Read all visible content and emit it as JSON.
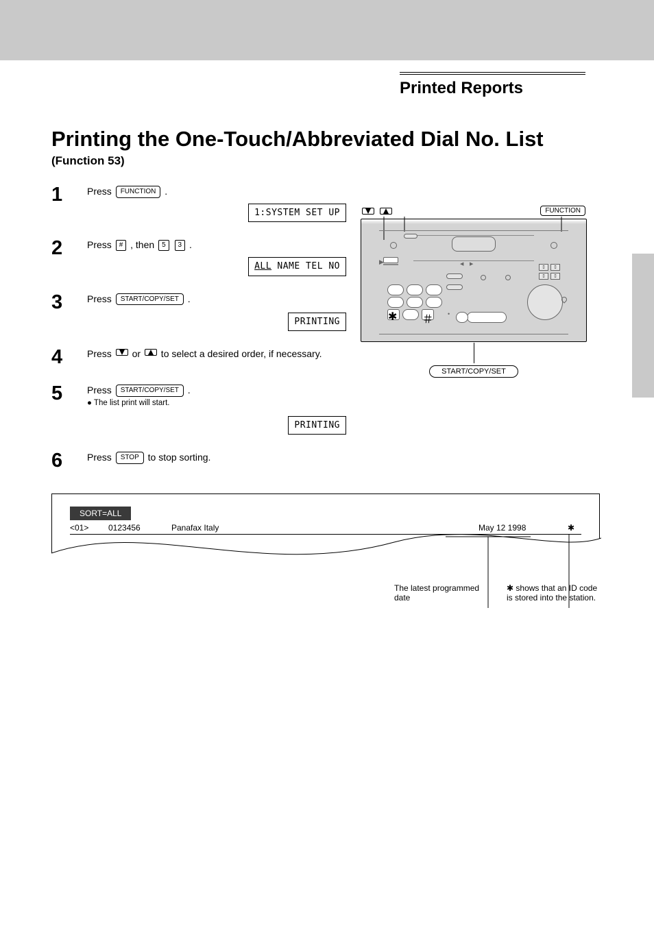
{
  "header_band_color": "#c9c9c9",
  "side_tab_color": "#c9c9c9",
  "page_heading": "Printed Reports",
  "section_title": "Printing the One-Touch/Abbreviated Dial No. List",
  "section_sub": "(Function 53)",
  "steps": [
    {
      "n": "1",
      "text": "Press <key>FUNCTION</key> .",
      "lcd": "1:SYSTEM SET UP"
    },
    {
      "n": "2",
      "text": "Press <sq>#</sq> , then <sq>5</sq> <sq>3</sq> .",
      "lcd": "<u>ALL</u>  NAME  TEL NO"
    },
    {
      "n": "3",
      "text": "Press <key>START/COPY/SET</key> .",
      "lcd": "PRINTING"
    },
    {
      "n": "4",
      "text": "Press <down/> or <up/> to select a desired order, if necessary."
    },
    {
      "n": "5",
      "text": "Press <key>START/COPY/SET</key> .",
      "post": "The list print will start.",
      "lcd": "PRINTING"
    },
    {
      "n": "6",
      "text": "Press <key>STOP</key> to stop sorting."
    }
  ],
  "panel_labels": {
    "arrows": "▼  ▲",
    "fn": "FUNCTION",
    "set": "START/COPY/SET"
  },
  "sample": {
    "tag": "SORT=ALL",
    "c1": "<01>",
    "c2": "0123456",
    "c3": "Panafax Italy",
    "c4": "May 12 1998",
    "star": "✱"
  },
  "callouts": {
    "left": "The latest programmed date",
    "right": "✱ shows that an ID code is stored into the station."
  }
}
